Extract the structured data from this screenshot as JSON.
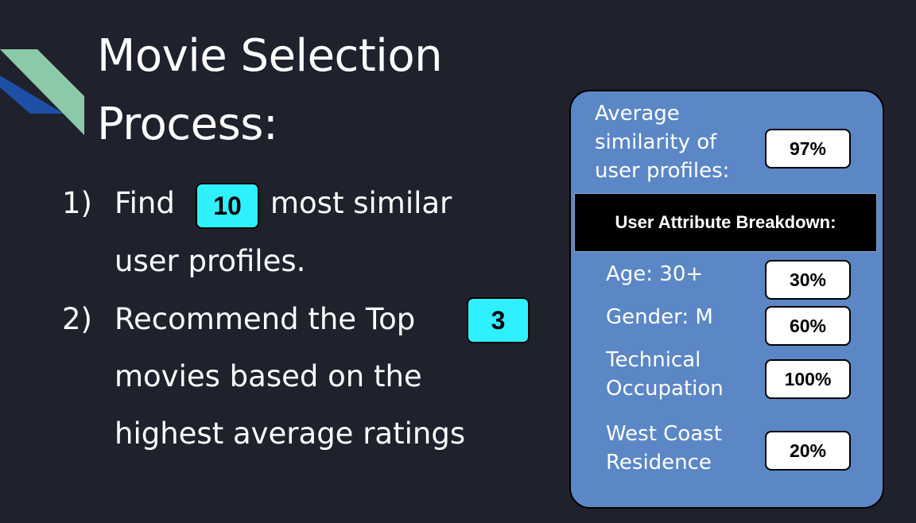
{
  "slide": {
    "title_line1": "Movie Selection",
    "title_line2": "Process:",
    "step1": {
      "number": "1)",
      "before": "Find",
      "value": "10",
      "after": "most similar",
      "line2": "user profiles."
    },
    "step2": {
      "number": "2)",
      "before": "Recommend the Top",
      "value": "3",
      "line2": "movies based on the",
      "line3": "highest average ratings"
    }
  },
  "panel": {
    "similarity_label": [
      "Average",
      "similarity of",
      "user profiles:"
    ],
    "similarity_value": "97%",
    "breakdown_title": "User Attribute Breakdown:",
    "attributes": [
      {
        "label": [
          "Age: 30+"
        ],
        "value": "30%"
      },
      {
        "label": [
          "Gender: M"
        ],
        "value": "60%"
      },
      {
        "label": [
          "Technical",
          "Occupation"
        ],
        "value": "100%"
      },
      {
        "label": [
          "West Coast",
          "Residence"
        ],
        "value": "20%"
      }
    ]
  },
  "colors": {
    "background": "#1f222c",
    "accent_teal": "#8bc9a9",
    "accent_blue": "#1e4fa6",
    "highlight_cyan": "#2ff0ff",
    "panel_blue": "#5b87c7"
  }
}
